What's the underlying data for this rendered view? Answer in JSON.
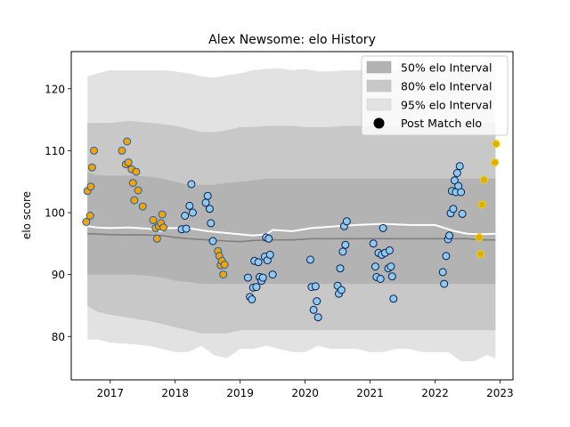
{
  "chart_data": {
    "type": "scatter",
    "title": "Alex Newsome: elo History",
    "xlabel": "",
    "ylabel": "elo score",
    "xlim": [
      2016.4,
      2023.2
    ],
    "ylim": [
      73,
      126
    ],
    "x_ticks": [
      2017,
      2018,
      2019,
      2020,
      2021,
      2022,
      2023
    ],
    "x_tick_labels": [
      "2017",
      "2018",
      "2019",
      "2020",
      "2021",
      "2022",
      "2023"
    ],
    "y_ticks": [
      80,
      90,
      100,
      110,
      120
    ],
    "y_tick_labels": [
      "80",
      "90",
      "100",
      "110",
      "120"
    ],
    "grid": false,
    "legend_position": "top-right",
    "legend": [
      {
        "label": "50% elo Interval",
        "kind": "band",
        "color": "#b3b3b3"
      },
      {
        "label": "80% elo Interval",
        "kind": "band",
        "color": "#c8c8c8"
      },
      {
        "label": "95% elo Interval",
        "kind": "band",
        "color": "#e2e2e2"
      },
      {
        "label": "Post Match elo",
        "kind": "marker",
        "color": "#000000"
      }
    ],
    "colors": {
      "band95": "#e2e2e2",
      "band80": "#c8c8c8",
      "band50": "#b3b3b3",
      "mean_line": "#ffffff",
      "median_line": "#7f7f7f",
      "orange_fill": "#f5a300",
      "orange_edge": "#1f5fa8",
      "blue_fill": "#8ec9f0",
      "blue_edge": "#0b1f4d",
      "yellow_fill": "#e8a900",
      "yellow_edge": "#e0e000"
    },
    "bands": {
      "x": [
        2016.65,
        2016.8,
        2017.0,
        2017.3,
        2017.6,
        2017.8,
        2018.0,
        2018.2,
        2018.4,
        2018.6,
        2018.8,
        2019.0,
        2019.2,
        2019.4,
        2019.6,
        2019.8,
        2020.0,
        2020.2,
        2020.4,
        2020.6,
        2020.8,
        2021.0,
        2021.2,
        2021.4,
        2021.6,
        2021.8,
        2022.0,
        2022.2,
        2022.4,
        2022.6,
        2022.8,
        2022.93
      ],
      "p95_upper": [
        122.0,
        122.5,
        123.0,
        123.0,
        123.0,
        123.0,
        122.8,
        122.5,
        122.0,
        121.8,
        122.2,
        122.5,
        123.0,
        123.2,
        123.3,
        123.0,
        123.2,
        122.8,
        122.8,
        123.0,
        123.0,
        123.0,
        122.8,
        123.0,
        123.0,
        123.0,
        123.0,
        123.0,
        123.2,
        124.0,
        124.5,
        124.5
      ],
      "p80_upper": [
        114.5,
        114.5,
        114.5,
        114.8,
        114.5,
        114.3,
        114.0,
        113.5,
        113.0,
        113.0,
        113.3,
        113.8,
        113.8,
        114.0,
        114.0,
        114.0,
        113.8,
        113.8,
        113.8,
        114.0,
        114.0,
        114.0,
        114.0,
        114.0,
        114.0,
        114.0,
        114.0,
        114.2,
        114.5,
        114.5,
        114.5,
        114.5
      ],
      "p50_upper": [
        106.5,
        106.0,
        106.0,
        106.0,
        105.8,
        105.5,
        105.0,
        104.5,
        104.5,
        104.5,
        104.8,
        105.0,
        105.2,
        105.5,
        105.5,
        105.5,
        105.5,
        105.5,
        105.5,
        105.5,
        105.5,
        105.5,
        105.5,
        105.5,
        105.5,
        105.5,
        105.5,
        105.5,
        105.5,
        105.5,
        105.5,
        105.5
      ],
      "p50_lower": [
        90.0,
        90.0,
        90.0,
        90.0,
        89.8,
        89.5,
        89.0,
        88.8,
        88.5,
        88.5,
        88.5,
        88.5,
        88.5,
        88.5,
        88.5,
        88.5,
        88.5,
        88.5,
        88.5,
        88.5,
        88.5,
        88.5,
        88.5,
        88.5,
        88.5,
        88.5,
        88.5,
        88.5,
        88.5,
        88.5,
        88.5,
        88.5
      ],
      "p80_lower": [
        85.0,
        84.0,
        83.5,
        83.0,
        82.5,
        82.0,
        81.5,
        81.0,
        80.5,
        80.5,
        80.5,
        81.0,
        81.0,
        81.0,
        81.0,
        81.0,
        81.0,
        81.0,
        81.0,
        81.0,
        81.0,
        81.0,
        81.0,
        81.0,
        81.0,
        81.0,
        81.0,
        81.0,
        81.0,
        81.0,
        81.0,
        81.0
      ],
      "p95_lower": [
        79.5,
        79.5,
        79.0,
        78.8,
        78.5,
        78.0,
        77.5,
        77.5,
        78.5,
        77.0,
        76.5,
        78.0,
        78.0,
        78.5,
        78.0,
        77.5,
        77.5,
        78.5,
        78.0,
        78.0,
        78.0,
        77.5,
        77.5,
        78.0,
        78.0,
        77.5,
        77.5,
        77.5,
        76.0,
        76.0,
        77.0,
        76.5
      ]
    },
    "mean_line": {
      "x": [
        2016.65,
        2016.8,
        2017.0,
        2017.3,
        2017.6,
        2017.8,
        2017.9,
        2018.2,
        2018.5,
        2018.8,
        2019.0,
        2019.2,
        2019.4,
        2019.5,
        2019.8,
        2020.1,
        2020.5,
        2020.8,
        2021.2,
        2021.6,
        2022.0,
        2022.3,
        2022.5,
        2022.7,
        2022.93
      ],
      "y": [
        97.8,
        97.6,
        97.5,
        97.6,
        97.4,
        97.0,
        97.5,
        97.5,
        97.0,
        96.7,
        96.5,
        96.3,
        96.5,
        97.2,
        97.0,
        97.5,
        97.8,
        98.0,
        98.2,
        98.0,
        98.0,
        97.0,
        96.6,
        96.5,
        96.6
      ]
    },
    "median_line": {
      "x": [
        2016.65,
        2016.9,
        2017.2,
        2017.5,
        2017.8,
        2018.0,
        2018.2,
        2018.5,
        2018.8,
        2019.0,
        2019.2,
        2019.5,
        2019.8,
        2020.1,
        2020.5,
        2020.8,
        2021.2,
        2021.6,
        2022.0,
        2022.3,
        2022.5,
        2022.7,
        2022.93
      ],
      "y": [
        96.6,
        96.5,
        96.4,
        96.4,
        96.3,
        96.0,
        95.8,
        95.6,
        95.4,
        95.3,
        95.5,
        95.6,
        95.6,
        95.8,
        95.8,
        95.8,
        95.8,
        95.8,
        95.8,
        95.8,
        95.8,
        95.6,
        95.6
      ]
    },
    "series": [
      {
        "group": "orange",
        "points": [
          [
            2016.63,
            98.5
          ],
          [
            2016.65,
            103.5
          ],
          [
            2016.69,
            99.5
          ],
          [
            2016.7,
            104.2
          ],
          [
            2016.72,
            107.3
          ],
          [
            2016.75,
            110.0
          ],
          [
            2017.18,
            110.0
          ],
          [
            2017.24,
            107.8
          ],
          [
            2017.26,
            111.5
          ],
          [
            2017.28,
            108.1
          ],
          [
            2017.33,
            107.0
          ],
          [
            2017.35,
            104.8
          ],
          [
            2017.37,
            102.0
          ],
          [
            2017.4,
            106.6
          ],
          [
            2017.43,
            103.6
          ],
          [
            2017.5,
            101.0
          ],
          [
            2017.66,
            98.8
          ],
          [
            2017.7,
            97.5
          ],
          [
            2017.72,
            95.8
          ],
          [
            2017.75,
            97.8
          ],
          [
            2017.78,
            98.3
          ],
          [
            2017.8,
            99.7
          ],
          [
            2017.82,
            97.6
          ],
          [
            2018.66,
            93.8
          ],
          [
            2018.68,
            93.0
          ],
          [
            2018.7,
            91.5
          ],
          [
            2018.72,
            92.2
          ],
          [
            2018.74,
            90.0
          ],
          [
            2018.76,
            91.6
          ]
        ]
      },
      {
        "group": "blue",
        "points": [
          [
            2018.1,
            97.3
          ],
          [
            2018.15,
            99.5
          ],
          [
            2018.17,
            97.4
          ],
          [
            2018.22,
            101.1
          ],
          [
            2018.25,
            104.6
          ],
          [
            2018.27,
            100.0
          ],
          [
            2018.47,
            101.6
          ],
          [
            2018.5,
            102.7
          ],
          [
            2018.53,
            100.6
          ],
          [
            2018.55,
            98.3
          ],
          [
            2018.58,
            95.4
          ],
          [
            2019.12,
            89.5
          ],
          [
            2019.15,
            86.4
          ],
          [
            2019.18,
            86.0
          ],
          [
            2019.2,
            87.9
          ],
          [
            2019.22,
            92.2
          ],
          [
            2019.25,
            88.0
          ],
          [
            2019.28,
            92.0
          ],
          [
            2019.3,
            89.6
          ],
          [
            2019.33,
            89.0
          ],
          [
            2019.35,
            89.5
          ],
          [
            2019.38,
            92.9
          ],
          [
            2019.4,
            96.0
          ],
          [
            2019.42,
            92.3
          ],
          [
            2019.44,
            95.8
          ],
          [
            2019.46,
            93.2
          ],
          [
            2019.5,
            90.0
          ],
          [
            2020.08,
            92.4
          ],
          [
            2020.1,
            88.0
          ],
          [
            2020.13,
            84.3
          ],
          [
            2020.16,
            88.1
          ],
          [
            2020.18,
            85.7
          ],
          [
            2020.2,
            83.1
          ],
          [
            2020.5,
            88.2
          ],
          [
            2020.52,
            86.9
          ],
          [
            2020.54,
            91.0
          ],
          [
            2020.56,
            87.5
          ],
          [
            2020.58,
            93.7
          ],
          [
            2020.6,
            97.8
          ],
          [
            2020.62,
            94.8
          ],
          [
            2020.64,
            98.6
          ],
          [
            2021.05,
            95.0
          ],
          [
            2021.08,
            91.3
          ],
          [
            2021.1,
            89.6
          ],
          [
            2021.13,
            93.5
          ],
          [
            2021.16,
            89.3
          ],
          [
            2021.18,
            93.2
          ],
          [
            2021.2,
            97.5
          ],
          [
            2021.23,
            93.5
          ],
          [
            2021.28,
            91.0
          ],
          [
            2021.3,
            93.9
          ],
          [
            2021.32,
            91.3
          ],
          [
            2021.34,
            89.7
          ],
          [
            2021.36,
            86.1
          ],
          [
            2022.12,
            90.4
          ],
          [
            2022.14,
            88.5
          ],
          [
            2022.17,
            93.0
          ],
          [
            2022.2,
            95.7
          ],
          [
            2022.22,
            96.3
          ],
          [
            2022.24,
            99.9
          ],
          [
            2022.26,
            103.5
          ],
          [
            2022.28,
            100.6
          ],
          [
            2022.3,
            105.2
          ],
          [
            2022.32,
            103.3
          ],
          [
            2022.34,
            106.4
          ],
          [
            2022.36,
            104.3
          ],
          [
            2022.38,
            107.5
          ],
          [
            2022.4,
            103.3
          ],
          [
            2022.42,
            99.8
          ]
        ]
      },
      {
        "group": "yellow",
        "points": [
          [
            2022.68,
            96.0
          ],
          [
            2022.7,
            93.3
          ],
          [
            2022.72,
            101.3
          ],
          [
            2022.75,
            105.3
          ],
          [
            2022.92,
            108.1
          ],
          [
            2022.94,
            111.1
          ]
        ]
      }
    ]
  }
}
